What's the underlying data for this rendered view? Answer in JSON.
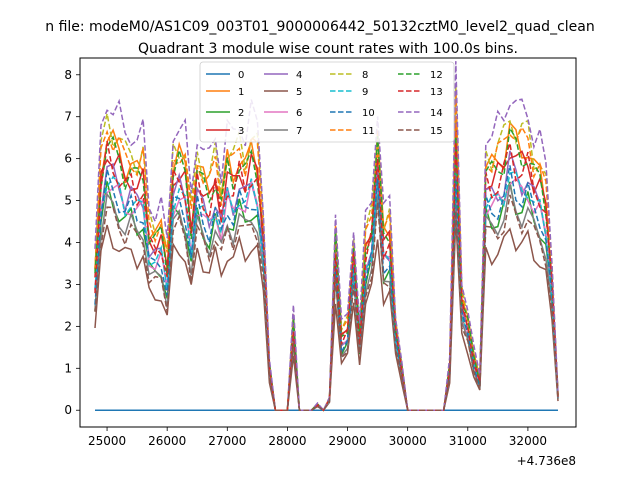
{
  "chart_data": {
    "type": "line",
    "suptitle": "n file: modeM0/AS1C09_003T01_9000006442_50132cztM0_level2_quad_clean",
    "title": "Quadrant 3 module wise count rates with 100.0s bins.",
    "x_offset_label": "+4.736e8",
    "xlabel": "",
    "ylabel": "",
    "xlim": [
      24550,
      32800
    ],
    "ylim": [
      -0.4,
      8.4
    ],
    "xticks": [
      25000,
      26000,
      27000,
      28000,
      29000,
      30000,
      31000,
      32000
    ],
    "xtick_labels": [
      "25000",
      "26000",
      "27000",
      "28000",
      "29000",
      "30000",
      "31000",
      "32000"
    ],
    "yticks": [
      0,
      1,
      2,
      3,
      4,
      5,
      6,
      7,
      8
    ],
    "ytick_labels": [
      "0",
      "1",
      "2",
      "3",
      "4",
      "5",
      "6",
      "7",
      "8"
    ],
    "x": [
      24800,
      24900,
      25000,
      25100,
      25200,
      25300,
      25400,
      25500,
      25600,
      25700,
      25800,
      25900,
      26000,
      26100,
      26200,
      26300,
      26400,
      26500,
      26600,
      26700,
      26800,
      26900,
      27000,
      27100,
      27200,
      27300,
      27400,
      27500,
      27600,
      27700,
      27800,
      27900,
      28000,
      28100,
      28200,
      28300,
      28400,
      28500,
      28600,
      28700,
      28800,
      28900,
      29000,
      29100,
      29200,
      29300,
      29400,
      29500,
      29600,
      29700,
      29800,
      29900,
      30000,
      30100,
      30200,
      30300,
      30400,
      30500,
      30600,
      30700,
      30800,
      30900,
      31000,
      31100,
      31200,
      31300,
      31400,
      31500,
      31600,
      31700,
      31800,
      31900,
      32000,
      32100,
      32200,
      32300,
      32400,
      32500
    ],
    "base_profile": [
      0.45,
      0.8,
      0.92,
      0.88,
      0.85,
      0.8,
      0.82,
      0.78,
      0.8,
      0.6,
      0.58,
      0.6,
      0.48,
      0.82,
      0.84,
      0.8,
      0.62,
      0.82,
      0.76,
      0.72,
      0.8,
      0.7,
      0.82,
      0.78,
      0.85,
      0.8,
      0.86,
      0.82,
      0.6,
      0.15,
      0.0,
      0.0,
      0.0,
      0.3,
      0.0,
      0.0,
      0.0,
      0.02,
      0.0,
      0.04,
      0.58,
      0.25,
      0.28,
      0.55,
      0.25,
      0.55,
      0.62,
      0.9,
      0.58,
      0.6,
      0.28,
      0.15,
      0.0,
      0.0,
      0.0,
      0.0,
      0.0,
      0.0,
      0.0,
      0.15,
      0.97,
      0.38,
      0.3,
      0.18,
      0.1,
      0.82,
      0.8,
      0.82,
      0.85,
      0.94,
      0.88,
      0.86,
      0.88,
      0.8,
      0.78,
      0.7,
      0.45,
      0.05
    ],
    "series": [
      {
        "name": "0",
        "color": "#1f77b4",
        "dash": "solid",
        "scale": 0.0,
        "flat": 0.0
      },
      {
        "name": "1",
        "color": "#ff7f0e",
        "dash": "solid",
        "scale": 7.2
      },
      {
        "name": "2",
        "color": "#2ca02c",
        "dash": "solid",
        "scale": 5.6
      },
      {
        "name": "3",
        "color": "#d62728",
        "dash": "solid",
        "scale": 6.8
      },
      {
        "name": "4",
        "color": "#9467bd",
        "dash": "solid",
        "scale": 6.3
      },
      {
        "name": "5",
        "color": "#8c564b",
        "dash": "solid",
        "scale": 4.6
      },
      {
        "name": "6",
        "color": "#e377c2",
        "dash": "solid",
        "scale": 6.0
      },
      {
        "name": "7",
        "color": "#7f7f7f",
        "dash": "solid",
        "scale": 5.4
      },
      {
        "name": "8",
        "color": "#bcbd22",
        "dash": "dashed",
        "scale": 7.6
      },
      {
        "name": "9",
        "color": "#17becf",
        "dash": "dashed",
        "scale": 6.1
      },
      {
        "name": "10",
        "color": "#1f77b4",
        "dash": "dashed",
        "scale": 5.9
      },
      {
        "name": "11",
        "color": "#ff7f0e",
        "dash": "dashed",
        "scale": 7.4
      },
      {
        "name": "12",
        "color": "#2ca02c",
        "dash": "dashed",
        "scale": 7.0
      },
      {
        "name": "13",
        "color": "#d62728",
        "dash": "dashed",
        "scale": 6.6
      },
      {
        "name": "14",
        "color": "#9467bd",
        "dash": "dashed",
        "scale": 8.2
      },
      {
        "name": "15",
        "color": "#8c564b",
        "dash": "dashed",
        "scale": 5.2
      }
    ],
    "legend_location": "upper-center",
    "legend_columns": 4,
    "grid": false
  }
}
